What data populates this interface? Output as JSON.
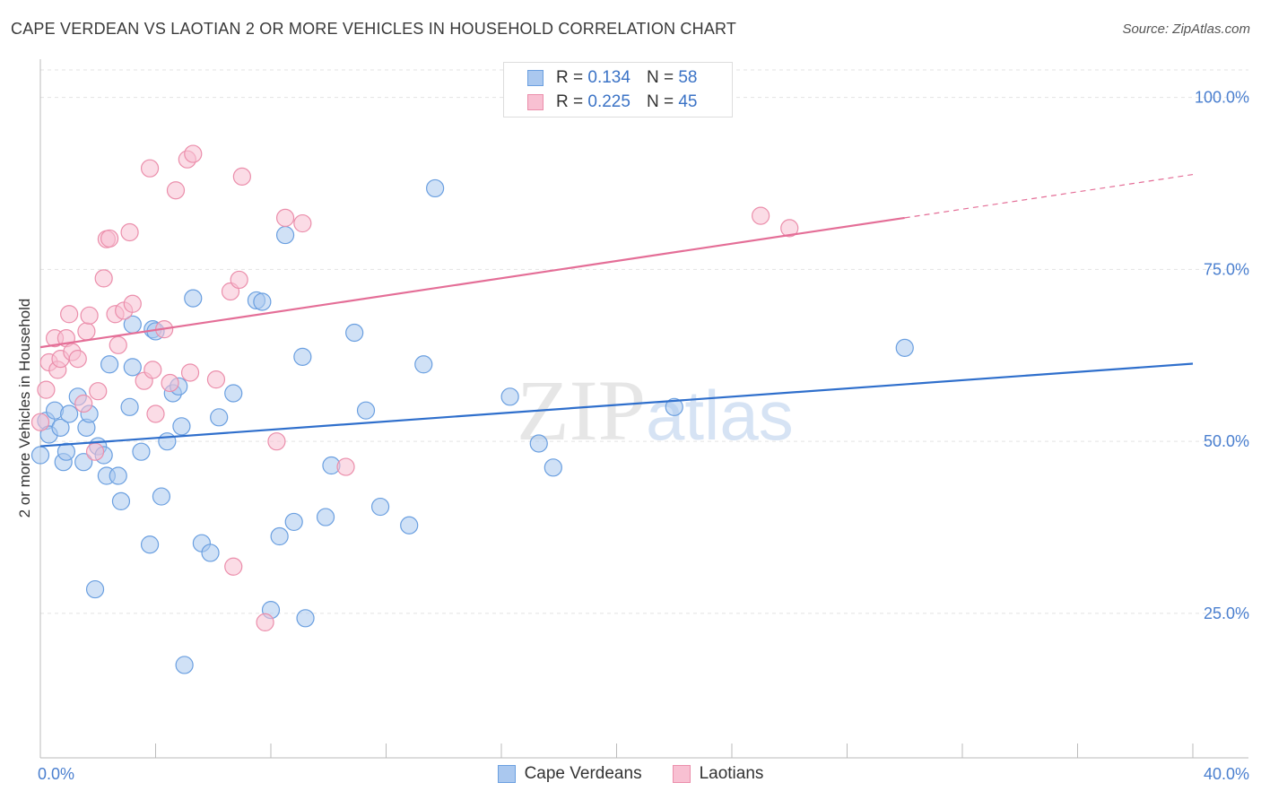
{
  "header": {
    "title": "CAPE VERDEAN VS LAOTIAN 2 OR MORE VEHICLES IN HOUSEHOLD CORRELATION CHART",
    "source": "Source: ZipAtlas.com"
  },
  "legend": {
    "rows": [
      {
        "r_label": "R =",
        "r_value": "0.134",
        "n_label": "N =",
        "n_value": "58"
      },
      {
        "r_label": "R =",
        "r_value": "0.225",
        "n_label": "N =",
        "n_value": "45"
      }
    ]
  },
  "colors": {
    "cape_fill": "#aac8ef",
    "cape_stroke": "#6a9fe0",
    "cape_line": "#2f6fcc",
    "lao_fill": "#f8c0d2",
    "lao_stroke": "#eb8eab",
    "lao_line": "#e46e97"
  },
  "chart_data": {
    "type": "scatter",
    "title": "CAPE VERDEAN VS LAOTIAN 2 OR MORE VEHICLES IN HOUSEHOLD CORRELATION CHART",
    "xlabel": "",
    "ylabel": "2 or more Vehicles in Household",
    "xlim": [
      0,
      40
    ],
    "ylim": [
      4,
      104
    ],
    "x_tick_labels": [
      "0.0%",
      "40.0%"
    ],
    "y_ticks": [
      25,
      50,
      75,
      100
    ],
    "y_tick_labels": [
      "25.0%",
      "50.0%",
      "75.0%",
      "100.0%"
    ],
    "grid": true,
    "legend_position": "top-center",
    "watermark": "ZIPatlas",
    "series": [
      {
        "name": "Cape Verdeans",
        "r": 0.134,
        "n": 58,
        "trend": {
          "x": [
            0,
            40
          ],
          "y": [
            49.3,
            61.3
          ]
        },
        "points": [
          [
            0.0,
            48.0
          ],
          [
            0.2,
            53.0
          ],
          [
            0.3,
            51.0
          ],
          [
            0.5,
            54.5
          ],
          [
            0.7,
            52.0
          ],
          [
            0.8,
            47.0
          ],
          [
            0.9,
            48.5
          ],
          [
            1.0,
            54.0
          ],
          [
            1.3,
            56.5
          ],
          [
            1.5,
            47.0
          ],
          [
            1.6,
            52.0
          ],
          [
            1.7,
            54.0
          ],
          [
            1.9,
            28.5
          ],
          [
            2.0,
            49.3
          ],
          [
            2.2,
            48.0
          ],
          [
            2.3,
            45.0
          ],
          [
            2.4,
            61.2
          ],
          [
            2.7,
            45.0
          ],
          [
            2.8,
            41.3
          ],
          [
            3.1,
            55.0
          ],
          [
            3.2,
            67.0
          ],
          [
            3.2,
            60.8
          ],
          [
            3.5,
            48.5
          ],
          [
            3.8,
            35.0
          ],
          [
            3.9,
            66.3
          ],
          [
            4.0,
            66.0
          ],
          [
            4.2,
            42.0
          ],
          [
            4.4,
            50.0
          ],
          [
            4.6,
            57.0
          ],
          [
            4.8,
            58.0
          ],
          [
            4.9,
            52.2
          ],
          [
            5.0,
            17.5
          ],
          [
            5.3,
            70.8
          ],
          [
            5.6,
            35.2
          ],
          [
            5.9,
            33.8
          ],
          [
            6.2,
            53.5
          ],
          [
            6.7,
            57.0
          ],
          [
            7.5,
            70.5
          ],
          [
            7.7,
            70.3
          ],
          [
            8.0,
            25.5
          ],
          [
            8.3,
            36.2
          ],
          [
            8.5,
            80.0
          ],
          [
            8.8,
            38.3
          ],
          [
            9.1,
            62.3
          ],
          [
            9.2,
            24.3
          ],
          [
            9.9,
            39.0
          ],
          [
            10.1,
            46.5
          ],
          [
            10.9,
            65.8
          ],
          [
            11.3,
            54.5
          ],
          [
            11.8,
            40.5
          ],
          [
            12.8,
            37.8
          ],
          [
            13.3,
            61.2
          ],
          [
            13.7,
            86.8
          ],
          [
            16.3,
            56.5
          ],
          [
            17.3,
            49.7
          ],
          [
            17.8,
            46.2
          ],
          [
            22.0,
            55.0
          ],
          [
            30.0,
            63.6
          ]
        ]
      },
      {
        "name": "Laotians",
        "r": 0.225,
        "n": 45,
        "trend": {
          "x": [
            0,
            30.0
          ],
          "y": [
            63.7,
            82.5
          ]
        },
        "trend_dashed": {
          "x": [
            30.0,
            40
          ],
          "y": [
            82.5,
            88.8
          ]
        },
        "points": [
          [
            0.0,
            52.8
          ],
          [
            0.2,
            57.5
          ],
          [
            0.3,
            61.5
          ],
          [
            0.5,
            65.0
          ],
          [
            0.6,
            60.4
          ],
          [
            0.7,
            62.0
          ],
          [
            0.9,
            65.0
          ],
          [
            1.0,
            68.5
          ],
          [
            1.1,
            63.0
          ],
          [
            1.3,
            62.0
          ],
          [
            1.5,
            55.5
          ],
          [
            1.6,
            66.0
          ],
          [
            1.7,
            68.3
          ],
          [
            1.9,
            48.5
          ],
          [
            2.0,
            57.3
          ],
          [
            2.2,
            73.7
          ],
          [
            2.3,
            79.4
          ],
          [
            2.4,
            79.5
          ],
          [
            2.6,
            68.5
          ],
          [
            2.7,
            64.0
          ],
          [
            2.9,
            69.0
          ],
          [
            3.1,
            80.4
          ],
          [
            3.2,
            70.0
          ],
          [
            3.6,
            58.8
          ],
          [
            3.8,
            89.7
          ],
          [
            3.9,
            60.4
          ],
          [
            4.0,
            54.0
          ],
          [
            4.3,
            66.3
          ],
          [
            4.5,
            58.5
          ],
          [
            4.7,
            86.5
          ],
          [
            5.1,
            91.0
          ],
          [
            5.2,
            60.0
          ],
          [
            5.3,
            91.8
          ],
          [
            6.1,
            59.0
          ],
          [
            6.6,
            71.8
          ],
          [
            6.7,
            31.8
          ],
          [
            6.9,
            73.5
          ],
          [
            7.0,
            88.5
          ],
          [
            7.8,
            23.7
          ],
          [
            8.5,
            82.5
          ],
          [
            9.1,
            81.7
          ],
          [
            10.6,
            46.3
          ],
          [
            25.0,
            82.8
          ],
          [
            26.0,
            81.0
          ],
          [
            8.2,
            50.0
          ]
        ]
      }
    ]
  },
  "bottom_legend": {
    "items": [
      "Cape Verdeans",
      "Laotians"
    ]
  }
}
